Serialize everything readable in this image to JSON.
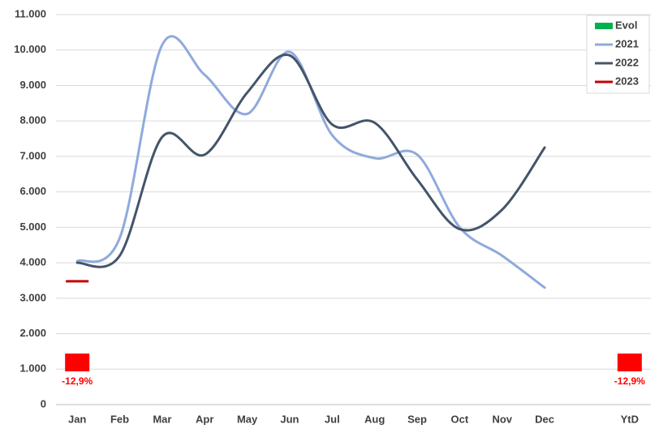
{
  "chart_data": {
    "type": "line",
    "categories": [
      "Jan",
      "Feb",
      "Mar",
      "Apr",
      "May",
      "Jun",
      "Jul",
      "Aug",
      "Sep",
      "Oct",
      "Nov",
      "Dec",
      null,
      "YtD"
    ],
    "series": [
      {
        "name": "Evol",
        "color": "#00b050",
        "negative_color": "#ff0000",
        "marker": "square",
        "values": [
          -12.9,
          null,
          null,
          null,
          null,
          null,
          null,
          null,
          null,
          null,
          null,
          null,
          null,
          -12.9
        ],
        "value_labels": [
          "-12,9%",
          null,
          null,
          null,
          null,
          null,
          null,
          null,
          null,
          null,
          null,
          null,
          null,
          "-12,9%"
        ]
      },
      {
        "name": "2021",
        "color": "#8faadc",
        "values": [
          4050,
          4700,
          10150,
          9300,
          8200,
          9950,
          7600,
          6950,
          7050,
          5000,
          4200,
          3300,
          null,
          null
        ]
      },
      {
        "name": "2022",
        "color": "#44546a",
        "values": [
          4000,
          4200,
          7550,
          7050,
          8800,
          9850,
          7900,
          7950,
          6350,
          4950,
          5500,
          7250,
          null,
          null
        ]
      },
      {
        "name": "2023",
        "color": "#c00000",
        "values": [
          3480,
          null,
          null,
          null,
          null,
          null,
          null,
          null,
          null,
          null,
          null,
          null,
          null,
          null
        ]
      }
    ],
    "ylim": [
      0,
      11000
    ],
    "yticks": [
      0,
      {
        "value": 1000,
        "label": "1.000"
      },
      {
        "value": 2000,
        "label": "2.000"
      },
      {
        "value": 3000,
        "label": "3.000"
      },
      {
        "value": 4000,
        "label": "4.000"
      },
      {
        "value": 5000,
        "label": "5.000"
      },
      {
        "value": 6000,
        "label": "6.000"
      },
      {
        "value": 7000,
        "label": "7.000"
      },
      {
        "value": 8000,
        "label": "8.000"
      },
      {
        "value": 9000,
        "label": "9.000"
      },
      {
        "value": 10000,
        "label": "10.000"
      },
      {
        "value": 11000,
        "label": "11.000"
      }
    ],
    "grid": true,
    "smooth": true,
    "legend": "top-right"
  }
}
